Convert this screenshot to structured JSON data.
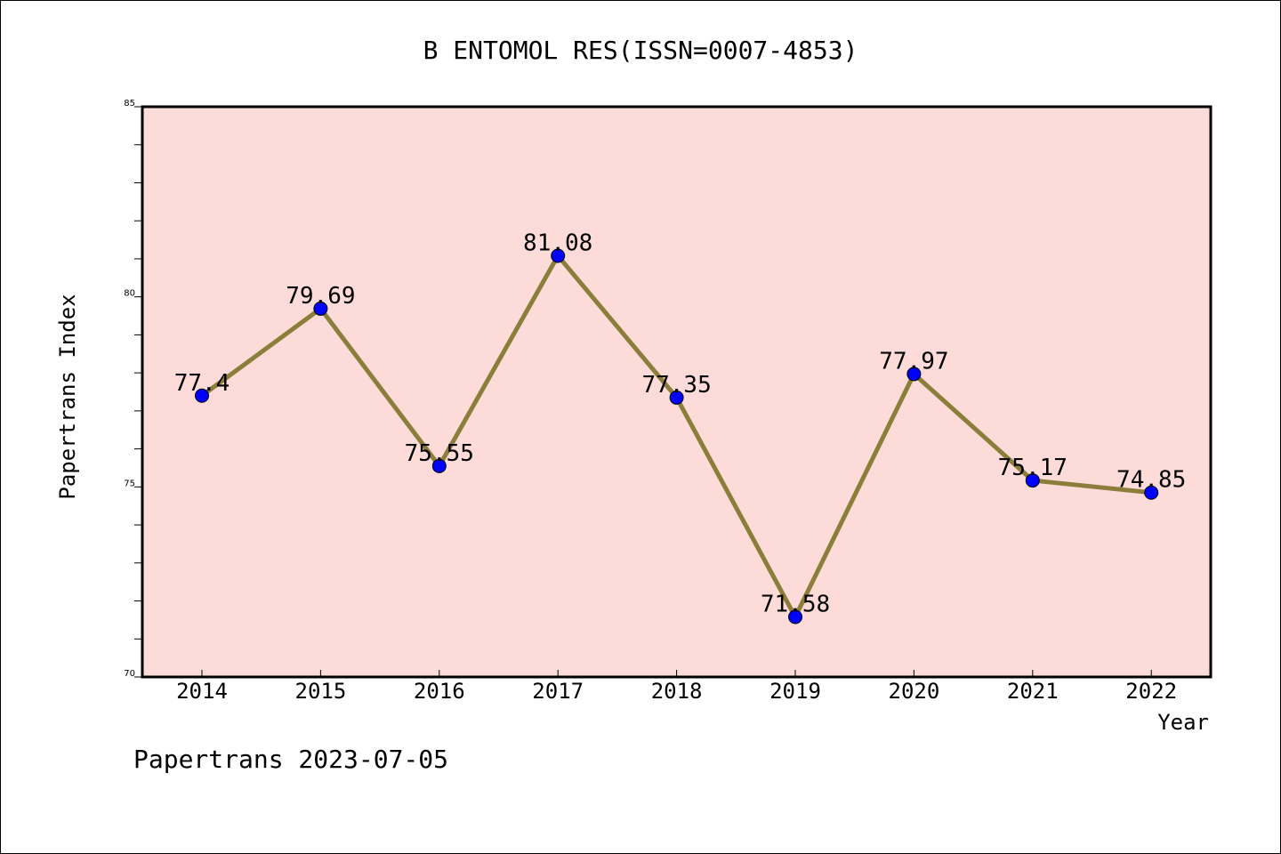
{
  "chart_data": {
    "type": "line",
    "title": "B ENTOMOL RES(ISSN=0007-4853)",
    "xlabel": "Year",
    "ylabel": "Papertrans Index",
    "categories": [
      "2014",
      "2015",
      "2016",
      "2017",
      "2018",
      "2019",
      "2020",
      "2021",
      "2022"
    ],
    "series": [
      {
        "values": [
          77.4,
          79.69,
          75.55,
          81.08,
          77.35,
          71.58,
          77.97,
          75.17,
          74.85
        ]
      }
    ],
    "data_labels": [
      "77.4",
      "79.69",
      "75.55",
      "81.08",
      "77.35",
      "71.58",
      "77.97",
      "75.17",
      "74.85"
    ],
    "ylim": [
      70,
      85
    ],
    "y_ticks": [
      "70",
      "75",
      "80",
      "85"
    ],
    "grid": false,
    "legend": "none"
  },
  "footer": {
    "text": "Papertrans 2023-07-05"
  },
  "colors": {
    "plot_background": "#fddbd8",
    "line": "#8b7d3a",
    "marker": "#0000ff",
    "page_background": "#ffffff"
  }
}
